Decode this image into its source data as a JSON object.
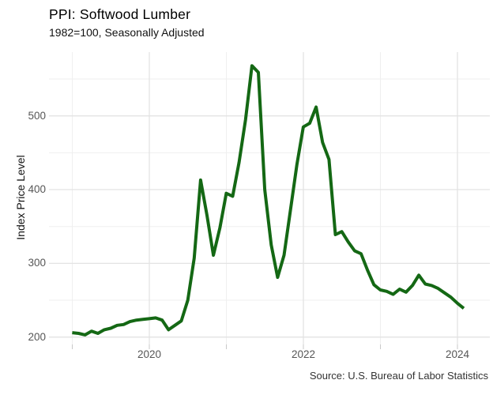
{
  "header": {
    "title": "PPI: Softwood Lumber",
    "subtitle": "1982=100, Seasonally Adjusted"
  },
  "caption": "Source: U.S. Bureau of Labor Statistics",
  "colors": {
    "line": "#146814",
    "grid_major": "#e3e3e3",
    "grid_minor": "#efefef",
    "tick_mark": "#c9c9c9",
    "tick_label": "#565656",
    "background": "#ffffff"
  },
  "chart_data": {
    "type": "line",
    "title": "PPI: Softwood Lumber",
    "subtitle": "1982=100, Seasonally Adjusted",
    "xlabel": "",
    "ylabel": "Index Price Level",
    "legend": "none",
    "grid": "on",
    "ylim": [
      195,
      575
    ],
    "y_major_ticks": [
      200,
      300,
      400,
      500
    ],
    "y_minor_gridlines": [
      250,
      350,
      450,
      550
    ],
    "x_major_ticks": [
      2020,
      2022,
      2024
    ],
    "x_minor_gridlines": [
      2019,
      2021,
      2023
    ],
    "series_name": "PPI Softwood Lumber (index, 1982=100, seasonally adjusted)",
    "frequency": "monthly",
    "months": [
      "2019-01",
      "2019-02",
      "2019-03",
      "2019-04",
      "2019-05",
      "2019-06",
      "2019-07",
      "2019-08",
      "2019-09",
      "2019-10",
      "2019-11",
      "2019-12",
      "2020-01",
      "2020-02",
      "2020-03",
      "2020-04",
      "2020-05",
      "2020-06",
      "2020-07",
      "2020-08",
      "2020-09",
      "2020-10",
      "2020-11",
      "2020-12",
      "2021-01",
      "2021-02",
      "2021-03",
      "2021-04",
      "2021-05",
      "2021-06",
      "2021-07",
      "2021-08",
      "2021-09",
      "2021-10",
      "2021-11",
      "2021-12",
      "2022-01",
      "2022-02",
      "2022-03",
      "2022-04",
      "2022-05",
      "2022-06",
      "2022-07",
      "2022-08",
      "2022-09",
      "2022-10",
      "2022-11",
      "2022-12",
      "2023-01",
      "2023-02",
      "2023-03",
      "2023-04",
      "2023-05",
      "2023-06",
      "2023-07",
      "2023-08",
      "2023-09",
      "2023-10",
      "2023-11",
      "2023-12",
      "2024-01",
      "2024-02"
    ],
    "values": [
      206,
      205,
      203,
      208,
      205,
      210,
      212,
      216,
      217,
      221,
      223,
      224,
      225,
      226,
      223,
      210,
      216,
      222,
      250,
      307,
      413,
      365,
      311,
      348,
      395,
      391,
      437,
      495,
      568,
      559,
      400,
      325,
      281,
      311,
      372,
      434,
      485,
      490,
      512,
      464,
      441,
      339,
      343,
      329,
      317,
      313,
      291,
      271,
      264,
      262,
      258,
      265,
      261,
      270,
      284,
      272,
      270,
      266,
      260,
      254,
      246,
      239
    ]
  }
}
